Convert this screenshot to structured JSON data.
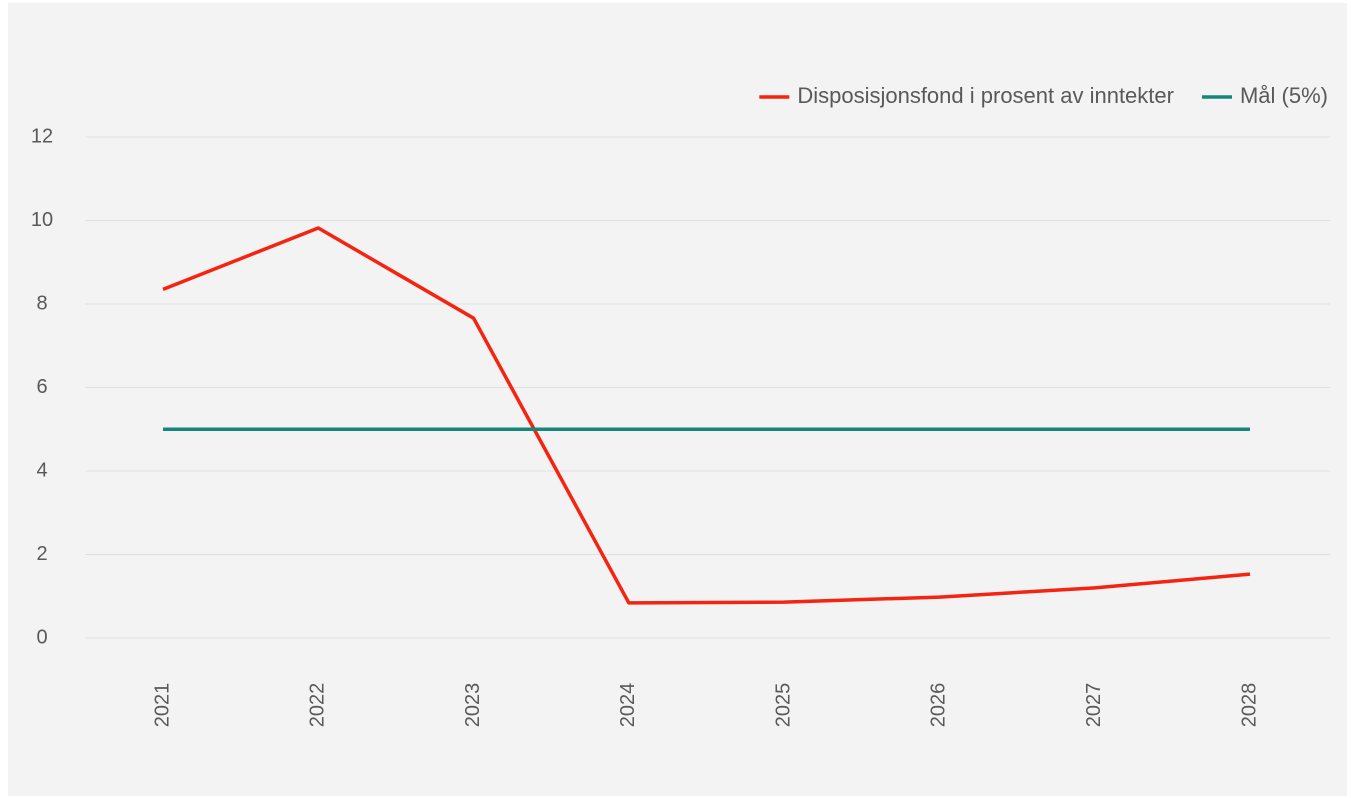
{
  "chart_data": {
    "type": "line",
    "categories": [
      "2021",
      "2022",
      "2023",
      "2024",
      "2025",
      "2026",
      "2027",
      "2028"
    ],
    "series": [
      {
        "name": "Disposisjonsfond i prosent av inntekter",
        "color": "#f5230f",
        "values": [
          8.35,
          9.82,
          7.66,
          0.84,
          0.86,
          0.98,
          1.2,
          1.53
        ]
      },
      {
        "name": "Mål (5%)",
        "color": "#14877a",
        "values": [
          5,
          5,
          5,
          5,
          5,
          5,
          5,
          5
        ]
      }
    ],
    "ylim": [
      0,
      12
    ],
    "yticks": [
      0,
      2,
      4,
      6,
      8,
      10,
      12
    ],
    "grid": true,
    "legend": "top-right"
  }
}
